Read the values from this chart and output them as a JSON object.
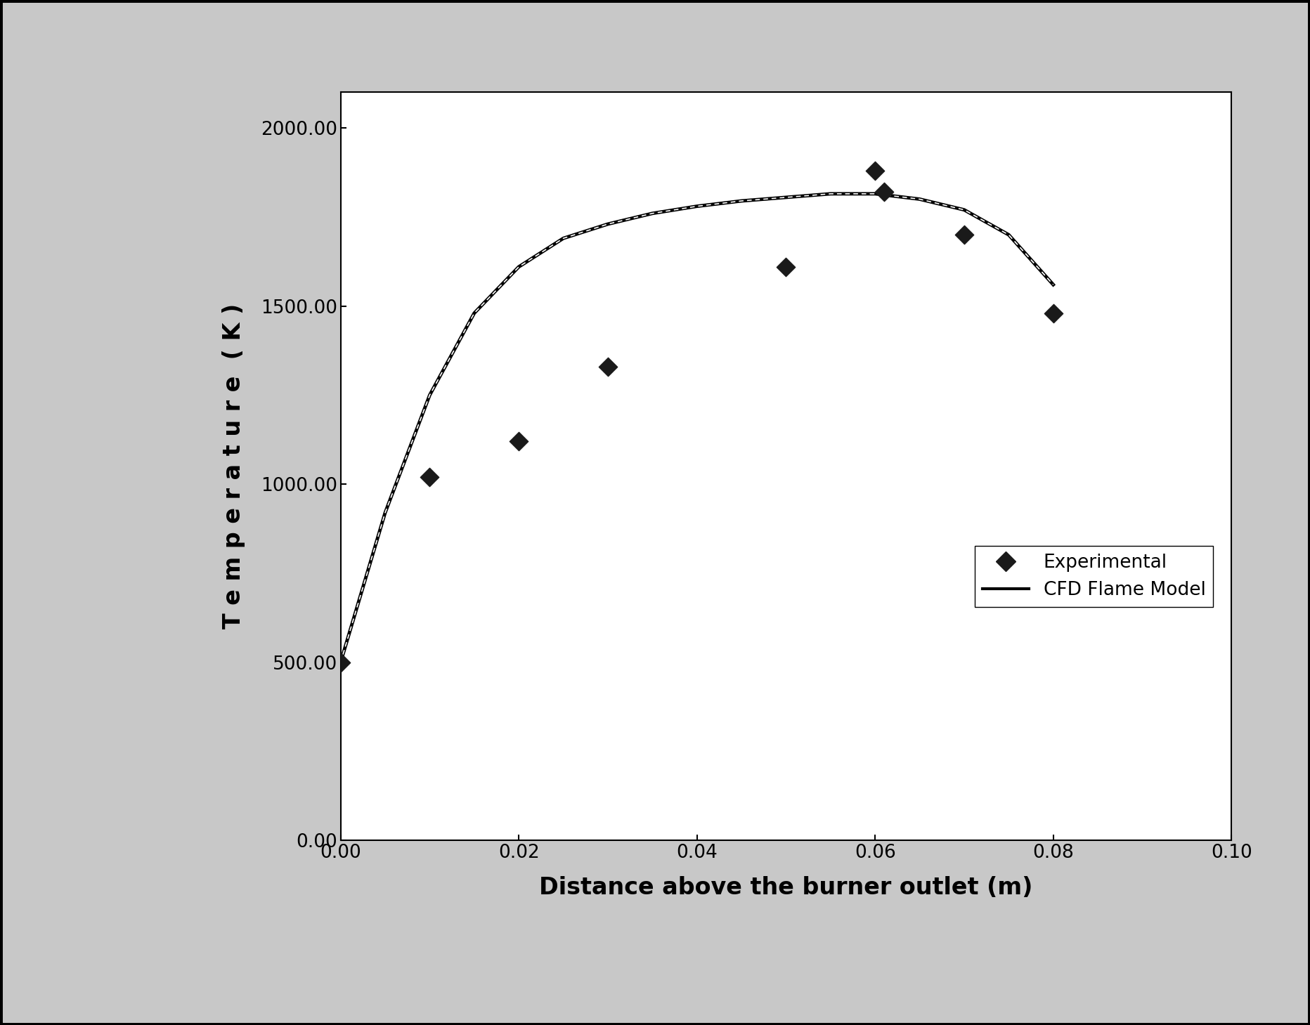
{
  "exp_x": [
    0.0,
    0.01,
    0.02,
    0.03,
    0.05,
    0.06,
    0.061,
    0.07,
    0.08
  ],
  "exp_y": [
    500,
    1020,
    1120,
    1330,
    1610,
    1880,
    1820,
    1700,
    1480
  ],
  "cfd_x": [
    0.0,
    0.005,
    0.01,
    0.015,
    0.02,
    0.025,
    0.03,
    0.035,
    0.04,
    0.045,
    0.05,
    0.055,
    0.06,
    0.065,
    0.07,
    0.075,
    0.08
  ],
  "cfd_y": [
    500,
    920,
    1250,
    1480,
    1610,
    1690,
    1730,
    1760,
    1780,
    1795,
    1805,
    1815,
    1815,
    1800,
    1770,
    1700,
    1560
  ],
  "xlabel": "Distance above the burner outlet (m)",
  "ylabel": "T e m p e r a t u r e  ( K )",
  "legend_exp": "Experimental",
  "legend_cfd": "CFD Flame Model",
  "xlim": [
    0.0,
    0.1
  ],
  "ylim": [
    0.0,
    2100.0
  ],
  "xticks": [
    0.0,
    0.02,
    0.04,
    0.06,
    0.08,
    0.1
  ],
  "yticks": [
    0.0,
    500.0,
    1000.0,
    1500.0,
    2000.0
  ],
  "outer_box_color": "#000000",
  "line_color": "#000000",
  "marker_color": "#1a1a1a",
  "outer_bg_color": "#c8c8c8",
  "inner_bg_color": "#ffffff",
  "fontsize_axis_label": 24,
  "fontsize_tick": 19,
  "fontsize_legend": 19
}
